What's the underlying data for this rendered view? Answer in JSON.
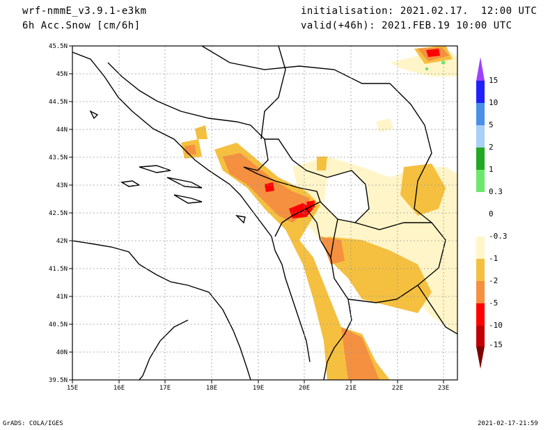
{
  "header": {
    "model": "wrf-nmmE_v3.9.1-e3km",
    "field": "6h Acc.Snow [cm/6h]",
    "init": "initialisation: 2021.02.17.  12:00 UTC",
    "valid": "valid(+46h): 2021.FEB.19 10:00 UTC"
  },
  "footer": {
    "credit": "GrADS: COLA/IGES",
    "timestamp": "2021-02-17-21:59"
  },
  "map": {
    "lat_labels": [
      "45.5N",
      "45N",
      "44.5N",
      "44N",
      "43.5N",
      "43N",
      "42.5N",
      "42N",
      "41.5N",
      "41N",
      "40.5N",
      "40N",
      "39.5N"
    ],
    "lon_labels": [
      "15E",
      "16E",
      "17E",
      "18E",
      "19E",
      "20E",
      "21E",
      "22E",
      "23E"
    ],
    "lon_range": [
      15,
      23.3
    ],
    "lat_range": [
      39.5,
      45.5
    ]
  },
  "colorbar": {
    "labels": [
      "15",
      "10",
      "5",
      "2",
      "1",
      "0.3",
      "0",
      "-0.3",
      "-1",
      "-2",
      "-5",
      "-10",
      "-15"
    ],
    "colors": [
      "#2020ff",
      "#4a90e8",
      "#a8d0f8",
      "#22a822",
      "#6ce86c",
      "#ffffff",
      "#ffffff",
      "#fff5c8",
      "#f5c040",
      "#f59040",
      "#ff0000",
      "#c00000",
      "#8a0000"
    ],
    "top_color": "#a040ff",
    "bottom_color": "#800000"
  }
}
